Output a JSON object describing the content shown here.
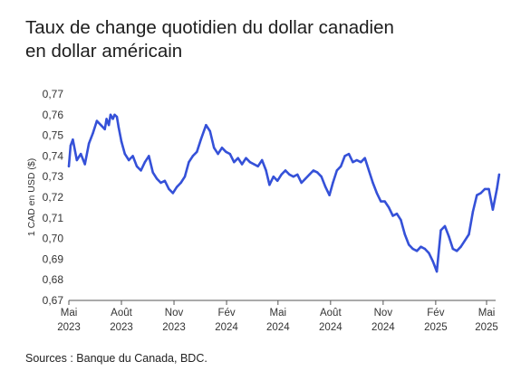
{
  "title_line1": "Taux de change quotidien du dollar canadien",
  "title_line2": "en dollar américain",
  "source": "Sources : Banque du Canada, BDC.",
  "chart_data": {
    "type": "line",
    "title": "Taux de change quotidien du dollar canadien en dollar américain",
    "ylabel": "1 CAD en USD ($)",
    "xlabel": "",
    "ylim": [
      0.67,
      0.77
    ],
    "yticks": [
      "0,77",
      "0,76",
      "0,75",
      "0,74",
      "0,73",
      "0,72",
      "0,71",
      "0,70",
      "0,69",
      "0,68",
      "0,67"
    ],
    "xticks": [
      {
        "month": "Mai",
        "year": "2023"
      },
      {
        "month": "Août",
        "year": "2023"
      },
      {
        "month": "Nov",
        "year": "2023"
      },
      {
        "month": "Fév",
        "year": "2024"
      },
      {
        "month": "Mai",
        "year": "2024"
      },
      {
        "month": "Août",
        "year": "2024"
      },
      {
        "month": "Nov",
        "year": "2024"
      },
      {
        "month": "Fév",
        "year": "2025"
      },
      {
        "month": "Mai",
        "year": "2025"
      }
    ],
    "grid": false,
    "line_color": "#3551d8",
    "series": [
      {
        "x": [
          "2023-05-01",
          "2023-05-04",
          "2023-05-08",
          "2023-05-15",
          "2023-05-22",
          "2023-05-29",
          "2023-06-05",
          "2023-06-12",
          "2023-06-19",
          "2023-06-26",
          "2023-07-03",
          "2023-07-06",
          "2023-07-10",
          "2023-07-13",
          "2023-07-17",
          "2023-07-20",
          "2023-07-24",
          "2023-07-27",
          "2023-08-01",
          "2023-08-07",
          "2023-08-14",
          "2023-08-21",
          "2023-08-28",
          "2023-09-04",
          "2023-09-11",
          "2023-09-18",
          "2023-09-25",
          "2023-10-02",
          "2023-10-09",
          "2023-10-16",
          "2023-10-23",
          "2023-10-30",
          "2023-11-06",
          "2023-11-13",
          "2023-11-20",
          "2023-11-27",
          "2023-12-04",
          "2023-12-11",
          "2023-12-18",
          "2023-12-27",
          "2024-01-03",
          "2024-01-10",
          "2024-01-17",
          "2024-01-24",
          "2024-01-31",
          "2024-02-07",
          "2024-02-14",
          "2024-02-21",
          "2024-02-28",
          "2024-03-06",
          "2024-03-13",
          "2024-03-20",
          "2024-03-27",
          "2024-04-03",
          "2024-04-10",
          "2024-04-16",
          "2024-04-23",
          "2024-04-30",
          "2024-05-07",
          "2024-05-14",
          "2024-05-21",
          "2024-05-28",
          "2024-06-04",
          "2024-06-11",
          "2024-06-18",
          "2024-06-25",
          "2024-07-02",
          "2024-07-09",
          "2024-07-16",
          "2024-07-23",
          "2024-07-30",
          "2024-08-05",
          "2024-08-12",
          "2024-08-19",
          "2024-08-26",
          "2024-09-02",
          "2024-09-09",
          "2024-09-16",
          "2024-09-23",
          "2024-09-30",
          "2024-10-07",
          "2024-10-14",
          "2024-10-21",
          "2024-10-28",
          "2024-11-04",
          "2024-11-11",
          "2024-11-18",
          "2024-11-25",
          "2024-12-02",
          "2024-12-09",
          "2024-12-16",
          "2024-12-23",
          "2024-12-30",
          "2025-01-06",
          "2025-01-13",
          "2025-01-20",
          "2025-01-27",
          "2025-02-03",
          "2025-02-10",
          "2025-02-17",
          "2025-02-24",
          "2025-03-03",
          "2025-03-10",
          "2025-03-17",
          "2025-03-24",
          "2025-03-31",
          "2025-04-07",
          "2025-04-14",
          "2025-04-21",
          "2025-04-28",
          "2025-05-05",
          "2025-05-12",
          "2025-05-19",
          "2025-05-23"
        ],
        "y": [
          0.735,
          0.745,
          0.748,
          0.738,
          0.741,
          0.736,
          0.746,
          0.751,
          0.757,
          0.755,
          0.753,
          0.758,
          0.755,
          0.76,
          0.758,
          0.76,
          0.759,
          0.754,
          0.747,
          0.741,
          0.738,
          0.74,
          0.735,
          0.733,
          0.737,
          0.74,
          0.732,
          0.729,
          0.727,
          0.728,
          0.724,
          0.722,
          0.725,
          0.727,
          0.73,
          0.737,
          0.74,
          0.742,
          0.748,
          0.755,
          0.752,
          0.744,
          0.741,
          0.744,
          0.742,
          0.741,
          0.737,
          0.739,
          0.736,
          0.739,
          0.737,
          0.736,
          0.735,
          0.738,
          0.733,
          0.726,
          0.73,
          0.728,
          0.731,
          0.733,
          0.731,
          0.73,
          0.731,
          0.727,
          0.729,
          0.731,
          0.733,
          0.732,
          0.73,
          0.725,
          0.721,
          0.727,
          0.733,
          0.735,
          0.74,
          0.741,
          0.737,
          0.738,
          0.737,
          0.739,
          0.733,
          0.727,
          0.722,
          0.718,
          0.718,
          0.715,
          0.711,
          0.712,
          0.709,
          0.702,
          0.697,
          0.695,
          0.694,
          0.696,
          0.695,
          0.693,
          0.689,
          0.684,
          0.704,
          0.706,
          0.701,
          0.695,
          0.694,
          0.696,
          0.699,
          0.702,
          0.713,
          0.721,
          0.722,
          0.724,
          0.724,
          0.714,
          0.724,
          0.731
        ]
      }
    ]
  }
}
